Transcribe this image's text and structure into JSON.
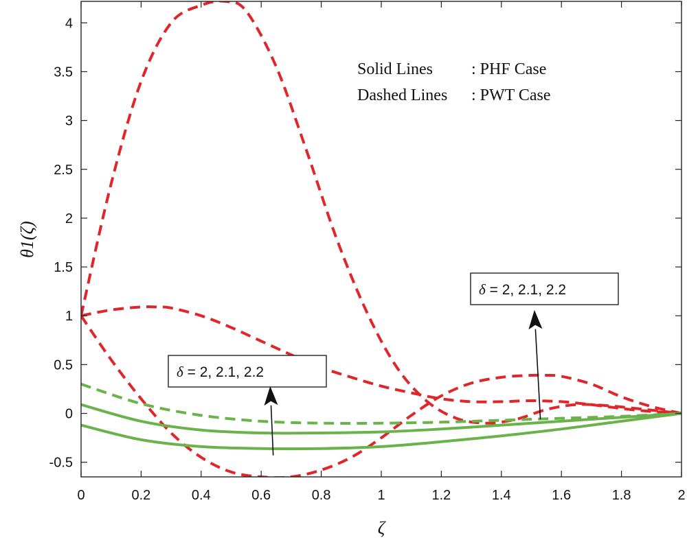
{
  "chart_data": {
    "type": "line",
    "xlabel": "ζ",
    "ylabel": "θ1(ζ)",
    "xlim": [
      0,
      2
    ],
    "ylim": [
      -0.65,
      4.22
    ],
    "grid": false,
    "x_ticks": [
      0,
      0.2,
      0.4,
      0.6,
      0.8,
      1,
      1.2,
      1.4,
      1.6,
      1.8,
      2
    ],
    "x_tick_labels": [
      "0",
      "0.2",
      "0.4",
      "0.6",
      "0.8",
      "1",
      "1.2",
      "1.4",
      "1.6",
      "1.8",
      "2"
    ],
    "y_ticks": [
      -0.5,
      0,
      0.5,
      1,
      1.5,
      2,
      2.5,
      3,
      3.5,
      4
    ],
    "y_tick_labels": [
      "-0.5",
      "0",
      "0.5",
      "1",
      "1.5",
      "2",
      "2.5",
      "3",
      "3.5",
      "4"
    ],
    "legend_note": {
      "solid_label": "Solid Lines",
      "solid_value": ": PHF Case",
      "dashed_label": "Dashed Lines",
      "dashed_value": ": PWT Case"
    },
    "annotations": [
      {
        "delta_symbol": "δ",
        "text": " = 2, 2.1, 2.2",
        "arrow_from": [
          0.64,
          -0.43
        ],
        "arrow_to": [
          0.63,
          0.28
        ]
      },
      {
        "delta_symbol": "δ",
        "text": " = 2, 2.1, 2.2",
        "arrow_from": [
          1.53,
          -0.06
        ],
        "arrow_to": [
          1.51,
          1.06
        ]
      }
    ],
    "series": [
      {
        "style": "dashed",
        "color": "#e0262a",
        "x": [
          0,
          0.1,
          0.2,
          0.3,
          0.4,
          0.48,
          0.55,
          0.65,
          0.75,
          0.85,
          0.95,
          1.05,
          1.15,
          1.25,
          1.35,
          1.45,
          1.55,
          1.65,
          1.75,
          1.85,
          2
        ],
        "y": [
          1.0,
          2.35,
          3.4,
          4.0,
          4.18,
          4.22,
          4.12,
          3.55,
          2.7,
          1.8,
          1.05,
          0.48,
          0.13,
          -0.05,
          -0.1,
          -0.06,
          0.04,
          0.09,
          0.08,
          0.05,
          0.0
        ]
      },
      {
        "style": "dashed",
        "color": "#e0262a",
        "x": [
          0,
          0.1,
          0.2,
          0.25,
          0.3,
          0.4,
          0.5,
          0.6,
          0.7,
          0.8,
          0.9,
          1.0,
          1.1,
          1.2,
          1.3,
          1.4,
          1.5,
          1.6,
          1.7,
          1.8,
          1.9,
          2
        ],
        "y": [
          1.0,
          1.06,
          1.09,
          1.09,
          1.08,
          1.0,
          0.88,
          0.74,
          0.6,
          0.47,
          0.37,
          0.28,
          0.21,
          0.15,
          0.12,
          0.12,
          0.13,
          0.12,
          0.09,
          0.05,
          0.02,
          0.0
        ]
      },
      {
        "style": "dashed",
        "color": "#e0262a",
        "x": [
          0,
          0.1,
          0.2,
          0.3,
          0.4,
          0.5,
          0.6,
          0.7,
          0.8,
          0.9,
          1.0,
          1.1,
          1.2,
          1.3,
          1.4,
          1.5,
          1.55,
          1.6,
          1.7,
          1.8,
          1.9,
          2
        ],
        "y": [
          1.0,
          0.55,
          0.15,
          -0.2,
          -0.45,
          -0.6,
          -0.65,
          -0.65,
          -0.58,
          -0.45,
          -0.25,
          -0.02,
          0.18,
          0.31,
          0.37,
          0.39,
          0.39,
          0.38,
          0.3,
          0.17,
          0.07,
          0.0
        ]
      },
      {
        "style": "dashed",
        "color": "#6ab24a",
        "x": [
          0,
          0.2,
          0.4,
          0.6,
          0.8,
          1.0,
          1.2,
          1.4,
          1.6,
          1.8,
          2
        ],
        "y": [
          0.3,
          0.1,
          -0.02,
          -0.08,
          -0.1,
          -0.1,
          -0.09,
          -0.07,
          -0.05,
          -0.03,
          0.0
        ]
      },
      {
        "style": "solid",
        "color": "#6ab24a",
        "x": [
          0,
          0.2,
          0.4,
          0.6,
          0.8,
          1.0,
          1.2,
          1.4,
          1.6,
          1.8,
          2
        ],
        "y": [
          0.09,
          -0.08,
          -0.17,
          -0.2,
          -0.2,
          -0.19,
          -0.16,
          -0.12,
          -0.08,
          -0.04,
          0.0
        ]
      },
      {
        "style": "solid",
        "color": "#6ab24a",
        "x": [
          0,
          0.2,
          0.4,
          0.6,
          0.8,
          1.0,
          1.2,
          1.4,
          1.6,
          1.8,
          2
        ],
        "y": [
          -0.12,
          -0.27,
          -0.34,
          -0.36,
          -0.36,
          -0.34,
          -0.29,
          -0.23,
          -0.16,
          -0.08,
          0.0
        ]
      }
    ]
  }
}
